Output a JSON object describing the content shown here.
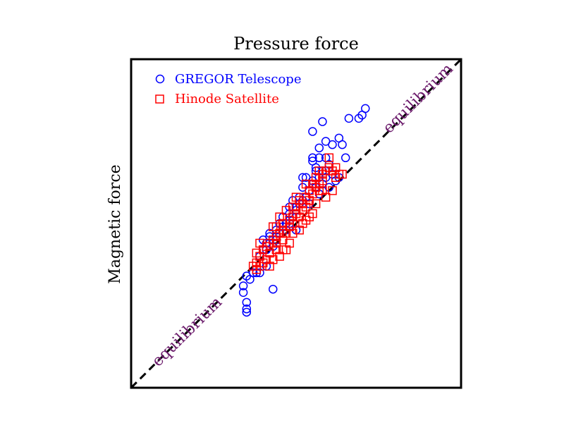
{
  "chart_data": {
    "type": "scatter",
    "title": "Pressure force",
    "xlabel": "",
    "ylabel": "Magnetic force",
    "xlim": [
      0,
      1
    ],
    "ylim": [
      0,
      1
    ],
    "grid": false,
    "legend_placement": "top-left",
    "reference_line": {
      "x": [
        0,
        1
      ],
      "y": [
        0,
        1
      ],
      "style": "dashed",
      "color": "#000000"
    },
    "annotations": [
      {
        "text": "equilibrium",
        "x": 0.88,
        "y": 0.87
      },
      {
        "text": "equilibrium",
        "x": 0.18,
        "y": 0.16
      }
    ],
    "series": [
      {
        "name": "GREGOR Telescope",
        "marker": "circle",
        "color": "#0000ff",
        "points": [
          [
            0.35,
            0.34
          ],
          [
            0.34,
            0.31
          ],
          [
            0.34,
            0.29
          ],
          [
            0.35,
            0.26
          ],
          [
            0.35,
            0.24
          ],
          [
            0.35,
            0.23
          ],
          [
            0.36,
            0.33
          ],
          [
            0.37,
            0.35
          ],
          [
            0.38,
            0.35
          ],
          [
            0.39,
            0.35
          ],
          [
            0.43,
            0.3
          ],
          [
            0.41,
            0.37
          ],
          [
            0.39,
            0.4
          ],
          [
            0.4,
            0.42
          ],
          [
            0.41,
            0.42
          ],
          [
            0.41,
            0.44
          ],
          [
            0.43,
            0.43
          ],
          [
            0.42,
            0.46
          ],
          [
            0.44,
            0.45
          ],
          [
            0.45,
            0.47
          ],
          [
            0.44,
            0.48
          ],
          [
            0.46,
            0.49
          ],
          [
            0.47,
            0.48
          ],
          [
            0.47,
            0.5
          ],
          [
            0.48,
            0.5
          ],
          [
            0.49,
            0.52
          ],
          [
            0.48,
            0.53
          ],
          [
            0.5,
            0.54
          ],
          [
            0.5,
            0.55
          ],
          [
            0.51,
            0.56
          ],
          [
            0.52,
            0.57
          ],
          [
            0.51,
            0.58
          ],
          [
            0.53,
            0.58
          ],
          [
            0.54,
            0.6
          ],
          [
            0.52,
            0.61
          ],
          [
            0.55,
            0.62
          ],
          [
            0.56,
            0.61
          ],
          [
            0.55,
            0.63
          ],
          [
            0.53,
            0.64
          ],
          [
            0.57,
            0.64
          ],
          [
            0.58,
            0.62
          ],
          [
            0.59,
            0.64
          ],
          [
            0.56,
            0.67
          ],
          [
            0.58,
            0.66
          ],
          [
            0.61,
            0.65
          ],
          [
            0.6,
            0.68
          ],
          [
            0.63,
            0.64
          ],
          [
            0.62,
            0.63
          ],
          [
            0.57,
            0.7
          ],
          [
            0.55,
            0.69
          ],
          [
            0.56,
            0.66
          ],
          [
            0.59,
            0.7
          ],
          [
            0.48,
            0.55
          ],
          [
            0.46,
            0.52
          ],
          [
            0.45,
            0.5
          ],
          [
            0.49,
            0.57
          ],
          [
            0.54,
            0.56
          ],
          [
            0.5,
            0.48
          ],
          [
            0.57,
            0.59
          ],
          [
            0.6,
            0.61
          ],
          [
            0.55,
            0.7
          ],
          [
            0.57,
            0.73
          ],
          [
            0.59,
            0.75
          ],
          [
            0.55,
            0.78
          ],
          [
            0.58,
            0.81
          ],
          [
            0.61,
            0.74
          ],
          [
            0.66,
            0.82
          ],
          [
            0.69,
            0.82
          ],
          [
            0.7,
            0.83
          ],
          [
            0.71,
            0.85
          ],
          [
            0.63,
            0.76
          ],
          [
            0.64,
            0.74
          ],
          [
            0.65,
            0.7
          ],
          [
            0.52,
            0.64
          ],
          [
            0.42,
            0.47
          ],
          [
            0.44,
            0.46
          ],
          [
            0.4,
            0.45
          ]
        ]
      },
      {
        "name": "Hinode Satellite",
        "marker": "square",
        "color": "#ff0000",
        "points": [
          [
            0.37,
            0.37
          ],
          [
            0.38,
            0.36
          ],
          [
            0.38,
            0.38
          ],
          [
            0.39,
            0.4
          ],
          [
            0.4,
            0.42
          ],
          [
            0.39,
            0.44
          ],
          [
            0.41,
            0.43
          ],
          [
            0.42,
            0.41
          ],
          [
            0.42,
            0.44
          ],
          [
            0.43,
            0.45
          ],
          [
            0.44,
            0.44
          ],
          [
            0.44,
            0.46
          ],
          [
            0.45,
            0.47
          ],
          [
            0.44,
            0.49
          ],
          [
            0.46,
            0.48
          ],
          [
            0.47,
            0.47
          ],
          [
            0.46,
            0.5
          ],
          [
            0.48,
            0.49
          ],
          [
            0.48,
            0.51
          ],
          [
            0.49,
            0.5
          ],
          [
            0.49,
            0.52
          ],
          [
            0.5,
            0.53
          ],
          [
            0.51,
            0.52
          ],
          [
            0.5,
            0.55
          ],
          [
            0.52,
            0.54
          ],
          [
            0.52,
            0.56
          ],
          [
            0.53,
            0.55
          ],
          [
            0.53,
            0.58
          ],
          [
            0.54,
            0.57
          ],
          [
            0.55,
            0.59
          ],
          [
            0.54,
            0.6
          ],
          [
            0.56,
            0.61
          ],
          [
            0.55,
            0.62
          ],
          [
            0.57,
            0.62
          ],
          [
            0.56,
            0.64
          ],
          [
            0.58,
            0.63
          ],
          [
            0.58,
            0.65
          ],
          [
            0.57,
            0.66
          ],
          [
            0.59,
            0.66
          ],
          [
            0.6,
            0.67
          ],
          [
            0.61,
            0.66
          ],
          [
            0.62,
            0.67
          ],
          [
            0.63,
            0.65
          ],
          [
            0.6,
            0.7
          ],
          [
            0.58,
            0.6
          ],
          [
            0.59,
            0.58
          ],
          [
            0.61,
            0.6
          ],
          [
            0.48,
            0.44
          ],
          [
            0.47,
            0.42
          ],
          [
            0.46,
            0.42
          ],
          [
            0.45,
            0.4
          ],
          [
            0.43,
            0.39
          ],
          [
            0.41,
            0.39
          ],
          [
            0.39,
            0.37
          ],
          [
            0.38,
            0.41
          ],
          [
            0.4,
            0.38
          ],
          [
            0.42,
            0.37
          ],
          [
            0.49,
            0.47
          ],
          [
            0.51,
            0.48
          ],
          [
            0.52,
            0.5
          ],
          [
            0.53,
            0.51
          ],
          [
            0.55,
            0.53
          ],
          [
            0.56,
            0.56
          ],
          [
            0.5,
            0.58
          ],
          [
            0.47,
            0.54
          ],
          [
            0.45,
            0.52
          ],
          [
            0.43,
            0.49
          ],
          [
            0.51,
            0.57
          ],
          [
            0.53,
            0.62
          ],
          [
            0.57,
            0.6
          ],
          [
            0.54,
            0.52
          ],
          [
            0.49,
            0.55
          ],
          [
            0.46,
            0.45
          ],
          [
            0.44,
            0.42
          ],
          [
            0.62,
            0.64
          ],
          [
            0.64,
            0.65
          ]
        ]
      }
    ]
  }
}
